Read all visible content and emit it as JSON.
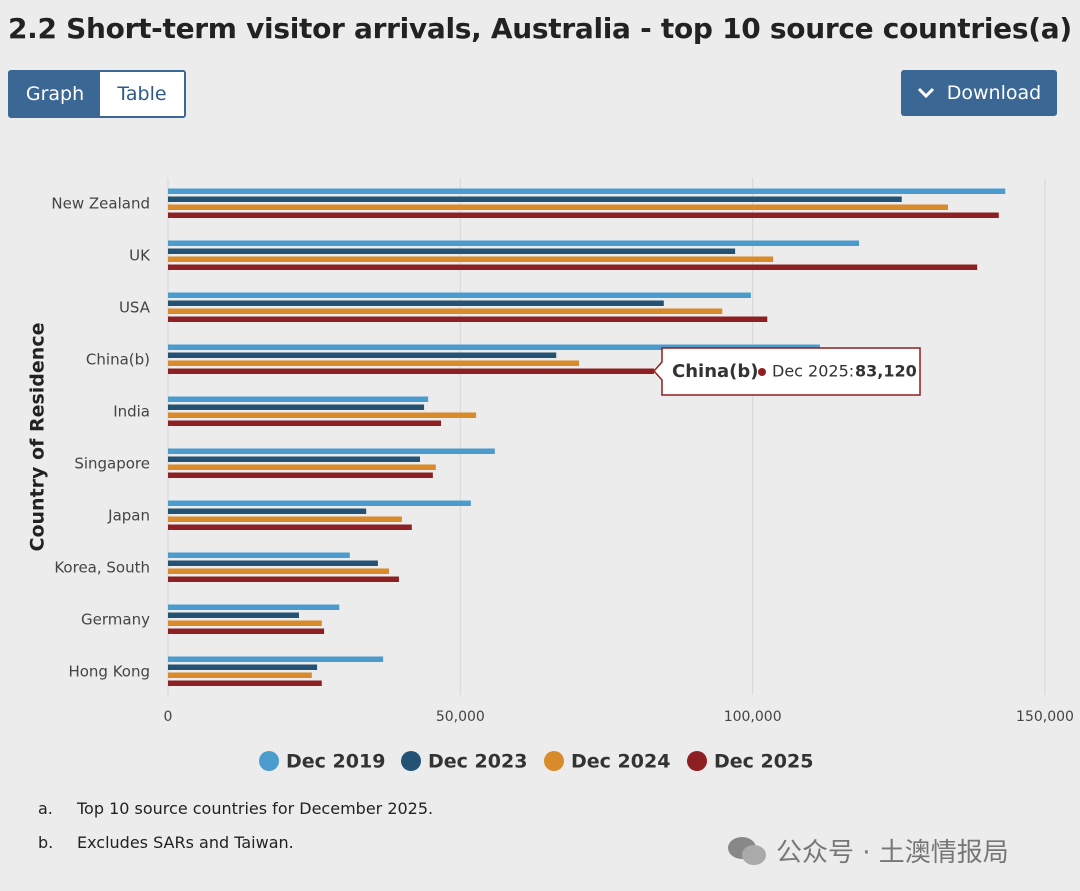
{
  "header": {
    "title": "2.2 Short-term visitor arrivals, Australia - top 10 source countries(a)",
    "tabs": [
      "Graph",
      "Table"
    ],
    "download": "Download"
  },
  "chart_data": {
    "type": "bar",
    "orientation": "horizontal",
    "y_label": "Country of Residence",
    "categories": [
      "New Zealand",
      "UK",
      "USA",
      "China(b)",
      "India",
      "Singapore",
      "Japan",
      "Korea, South",
      "Germany",
      "Hong Kong"
    ],
    "series": [
      {
        "name": "Dec 2019",
        "color": "#4b9ccc",
        "values": [
          143200,
          118200,
          99700,
          111500,
          44500,
          55900,
          51800,
          31100,
          29300,
          36800
        ]
      },
      {
        "name": "Dec 2023",
        "color": "#235275",
        "values": [
          125500,
          97000,
          84800,
          66400,
          43800,
          43100,
          33900,
          35900,
          22400,
          25500
        ]
      },
      {
        "name": "Dec 2024",
        "color": "#d98a2b",
        "values": [
          133400,
          103500,
          94800,
          70300,
          52700,
          45800,
          40000,
          37800,
          26300,
          24600
        ]
      },
      {
        "name": "Dec 2025",
        "color": "#8e1f22",
        "values": [
          142100,
          138400,
          102500,
          83120,
          46700,
          45300,
          41700,
          39500,
          26700,
          26300
        ],
        "value_labels": [
          null,
          null,
          null,
          "83,120",
          null,
          null,
          null,
          null,
          null,
          null
        ]
      }
    ],
    "xlim": [
      0,
      150000
    ],
    "xticks": [
      0,
      {
        "value": 50000,
        "label": "50,000"
      },
      {
        "value": 100000,
        "label": "100,000"
      },
      {
        "value": 150000,
        "label": "150,000"
      }
    ],
    "grid": true,
    "legend": "bottom",
    "tooltip": {
      "series_label": "Dec 2025:"
    }
  },
  "footnotes": [
    {
      "marker": "a.",
      "text": "Top 10 source countries for December 2025."
    },
    {
      "marker": "b.",
      "text": "Excludes SARs and Taiwan."
    }
  ],
  "watermark": "公众号 · 土澳情报局"
}
